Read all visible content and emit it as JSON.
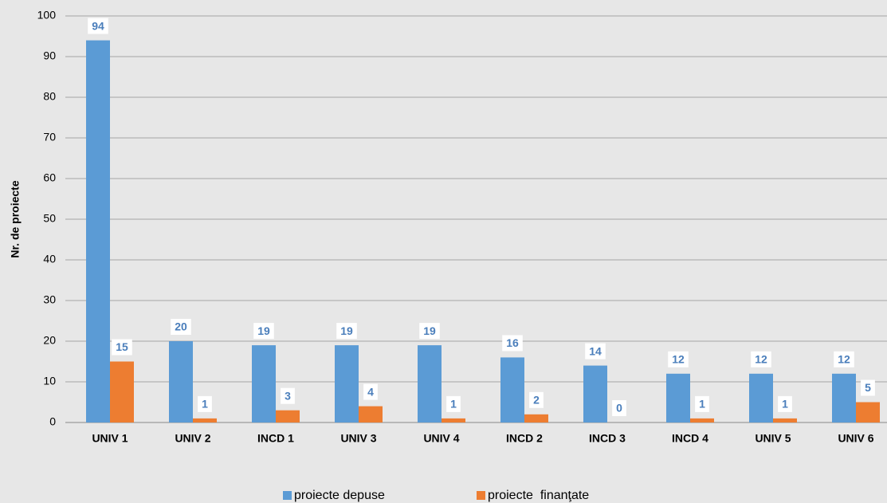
{
  "chart_data": {
    "type": "bar",
    "y_label": "Nr. de proiecte",
    "categories": [
      "UNIV 1",
      "UNIV 2",
      "INCD 1",
      "UNIV 3",
      "UNIV 4",
      "INCD 2",
      "INCD 3",
      "INCD 4",
      "UNIV 5",
      "UNIV 6"
    ],
    "series": [
      {
        "name": "proiecte depuse",
        "color": "#5b9bd5",
        "values": [
          94,
          20,
          19,
          19,
          19,
          16,
          14,
          12,
          12,
          12
        ]
      },
      {
        "name": "proiecte  finanţate",
        "color": "#ed7d31",
        "values": [
          15,
          1,
          3,
          4,
          1,
          2,
          0,
          1,
          1,
          5
        ]
      }
    ],
    "ylim": [
      0,
      100
    ],
    "yticks": [
      0,
      10,
      20,
      30,
      40,
      50,
      60,
      70,
      80,
      90,
      100
    ],
    "grid": true,
    "legend": "bottom"
  }
}
